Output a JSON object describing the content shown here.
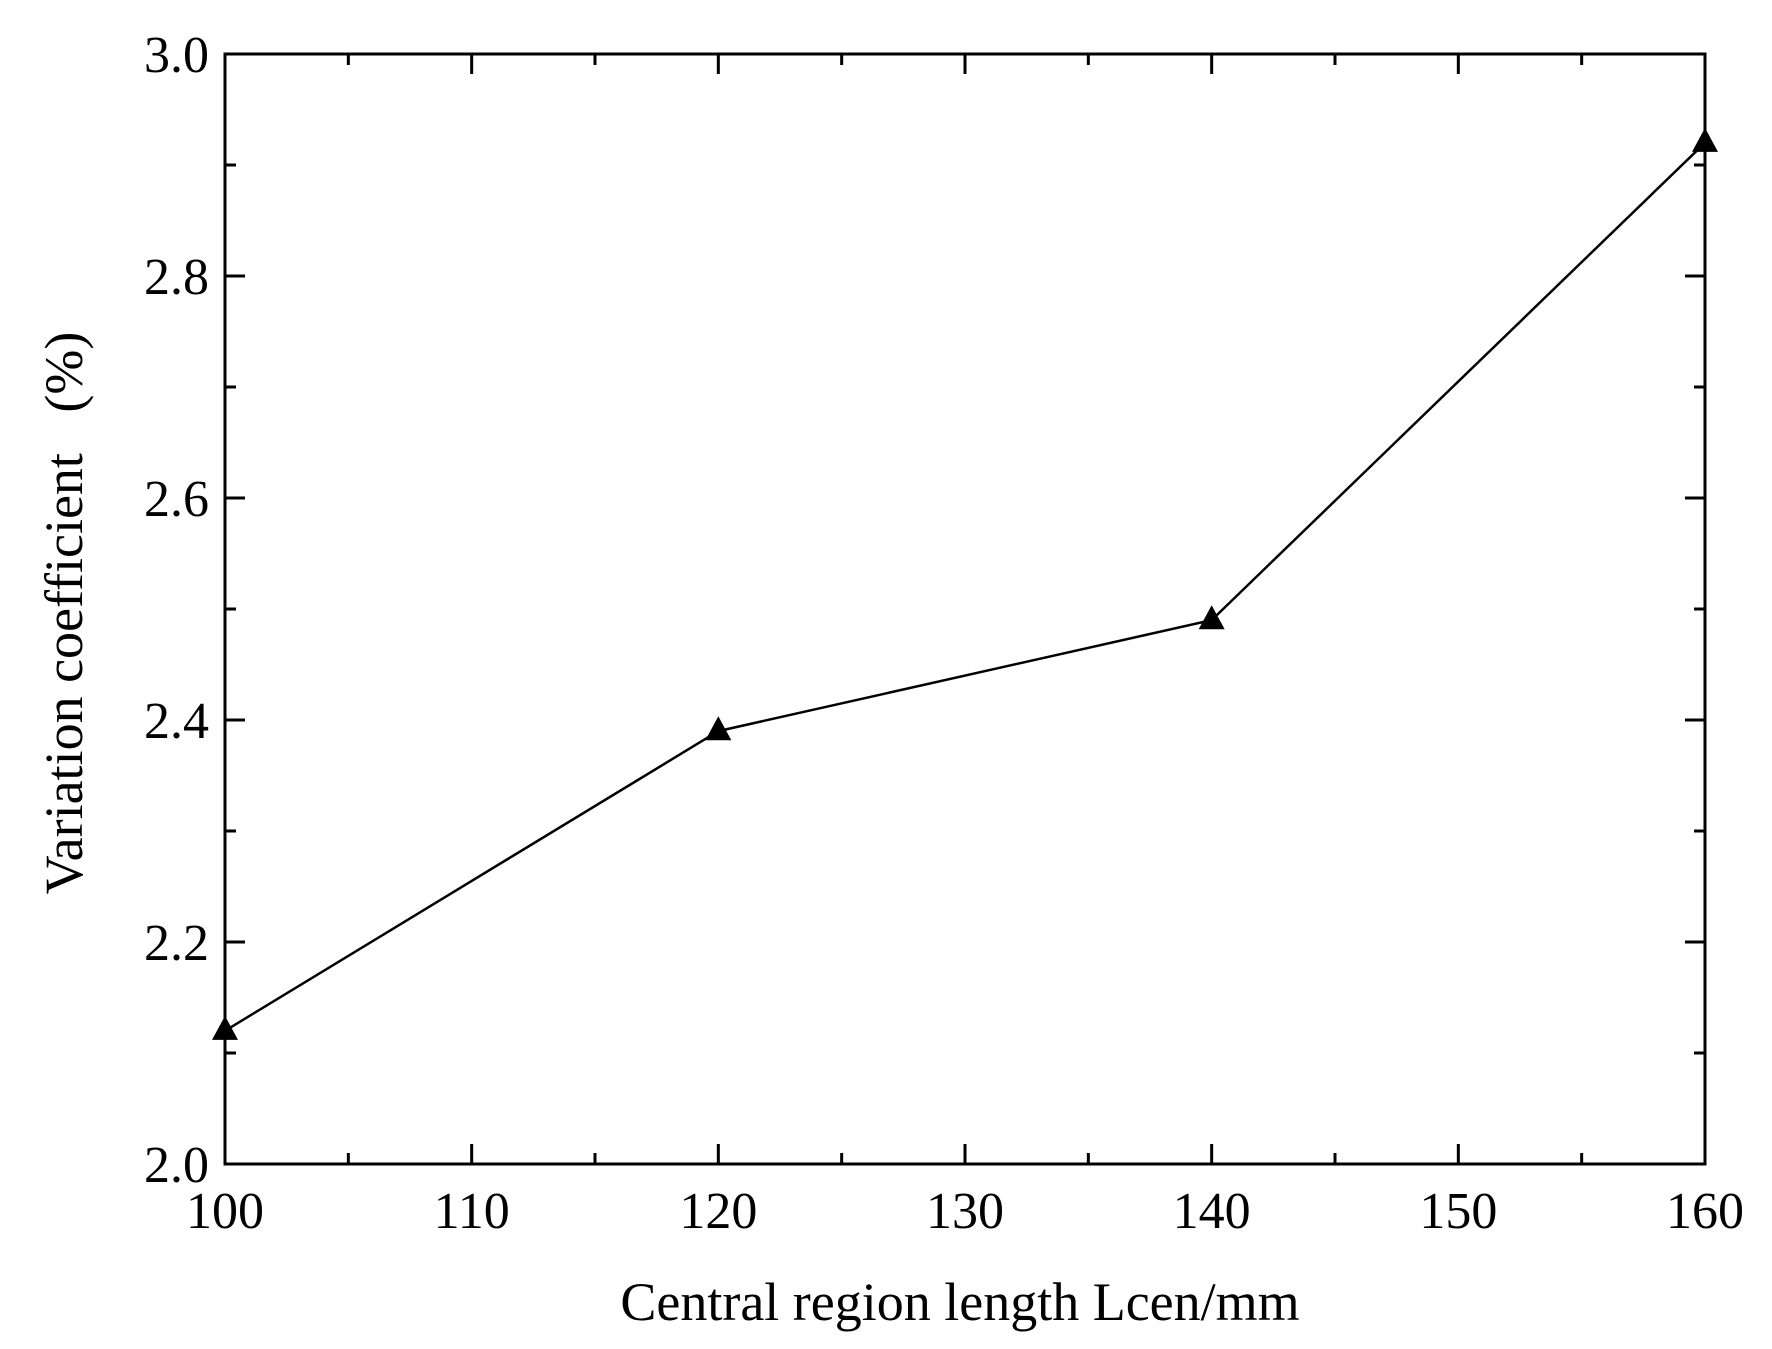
{
  "chart_data": {
    "type": "line",
    "title": "",
    "xlabel": "Central region length Lcen/mm",
    "ylabel": "Variation coefficient   (%)",
    "xlim": [
      100,
      160
    ],
    "ylim": [
      2.0,
      3.0
    ],
    "x_major_ticks": [
      100,
      110,
      120,
      130,
      140,
      150,
      160
    ],
    "x_tick_labels": [
      "100",
      "110",
      "120",
      "130",
      "140",
      "150",
      "160"
    ],
    "x_minor_step": 5,
    "y_major_ticks": [
      2.0,
      2.2,
      2.4,
      2.6,
      2.8,
      3.0
    ],
    "y_tick_labels": [
      "2.0",
      "2.2",
      "2.4",
      "2.6",
      "2.8",
      "3.0"
    ],
    "y_minor_step": 0.1,
    "grid": false,
    "legend": "none",
    "series": [
      {
        "x": [
          100,
          120,
          140,
          160
        ],
        "y": [
          2.12,
          2.39,
          2.49,
          2.92
        ],
        "marker": "triangle",
        "color": "#000000"
      }
    ]
  }
}
